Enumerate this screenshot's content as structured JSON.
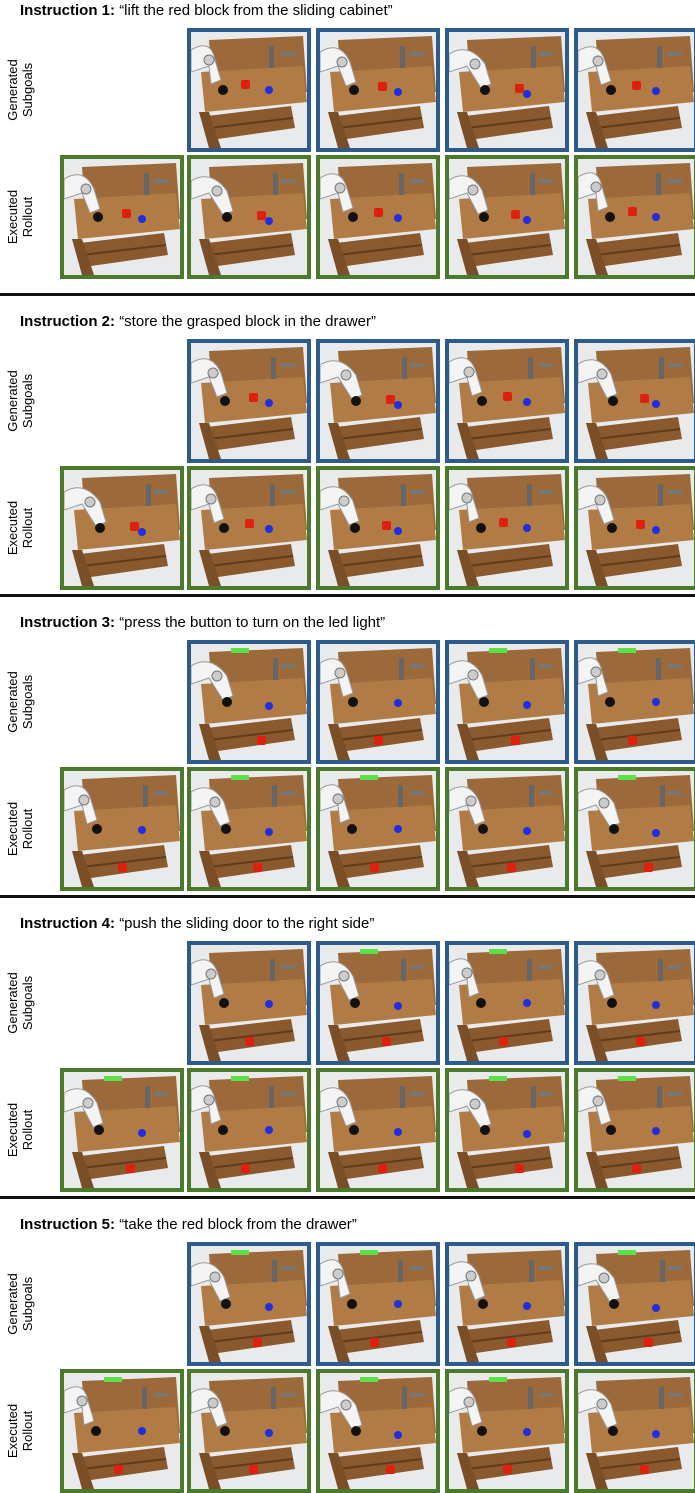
{
  "instructions": [
    {
      "label": "Instruction 1:",
      "text": "“lift the red block from the sliding cabinet”",
      "subgoal_label": [
        "Generated",
        "Subgoals"
      ],
      "rollout_label": [
        "Executed",
        "Rollout"
      ]
    },
    {
      "label": "Instruction 2:",
      "text": "“store the grasped block in the drawer”",
      "subgoal_label": [
        "Generated",
        "Subgoals"
      ],
      "rollout_label": [
        "Executed",
        "Rollout"
      ]
    },
    {
      "label": "Instruction 3:",
      "text": "“press the button to turn on the led light”",
      "subgoal_label": [
        "Generated",
        "Subgoals"
      ],
      "rollout_label": [
        "Executed",
        "Rollout"
      ]
    },
    {
      "label": "Instruction 4:",
      "text": "“push the sliding door to the right side”",
      "subgoal_label": [
        "Generated",
        "Subgoals"
      ],
      "rollout_label": [
        "Executed",
        "Rollout"
      ]
    },
    {
      "label": "Instruction 5:",
      "text": "“take the red block from the drawer”",
      "subgoal_label": [
        "Generated",
        "Subgoals"
      ],
      "rollout_label": [
        "Executed",
        "Rollout"
      ]
    }
  ]
}
